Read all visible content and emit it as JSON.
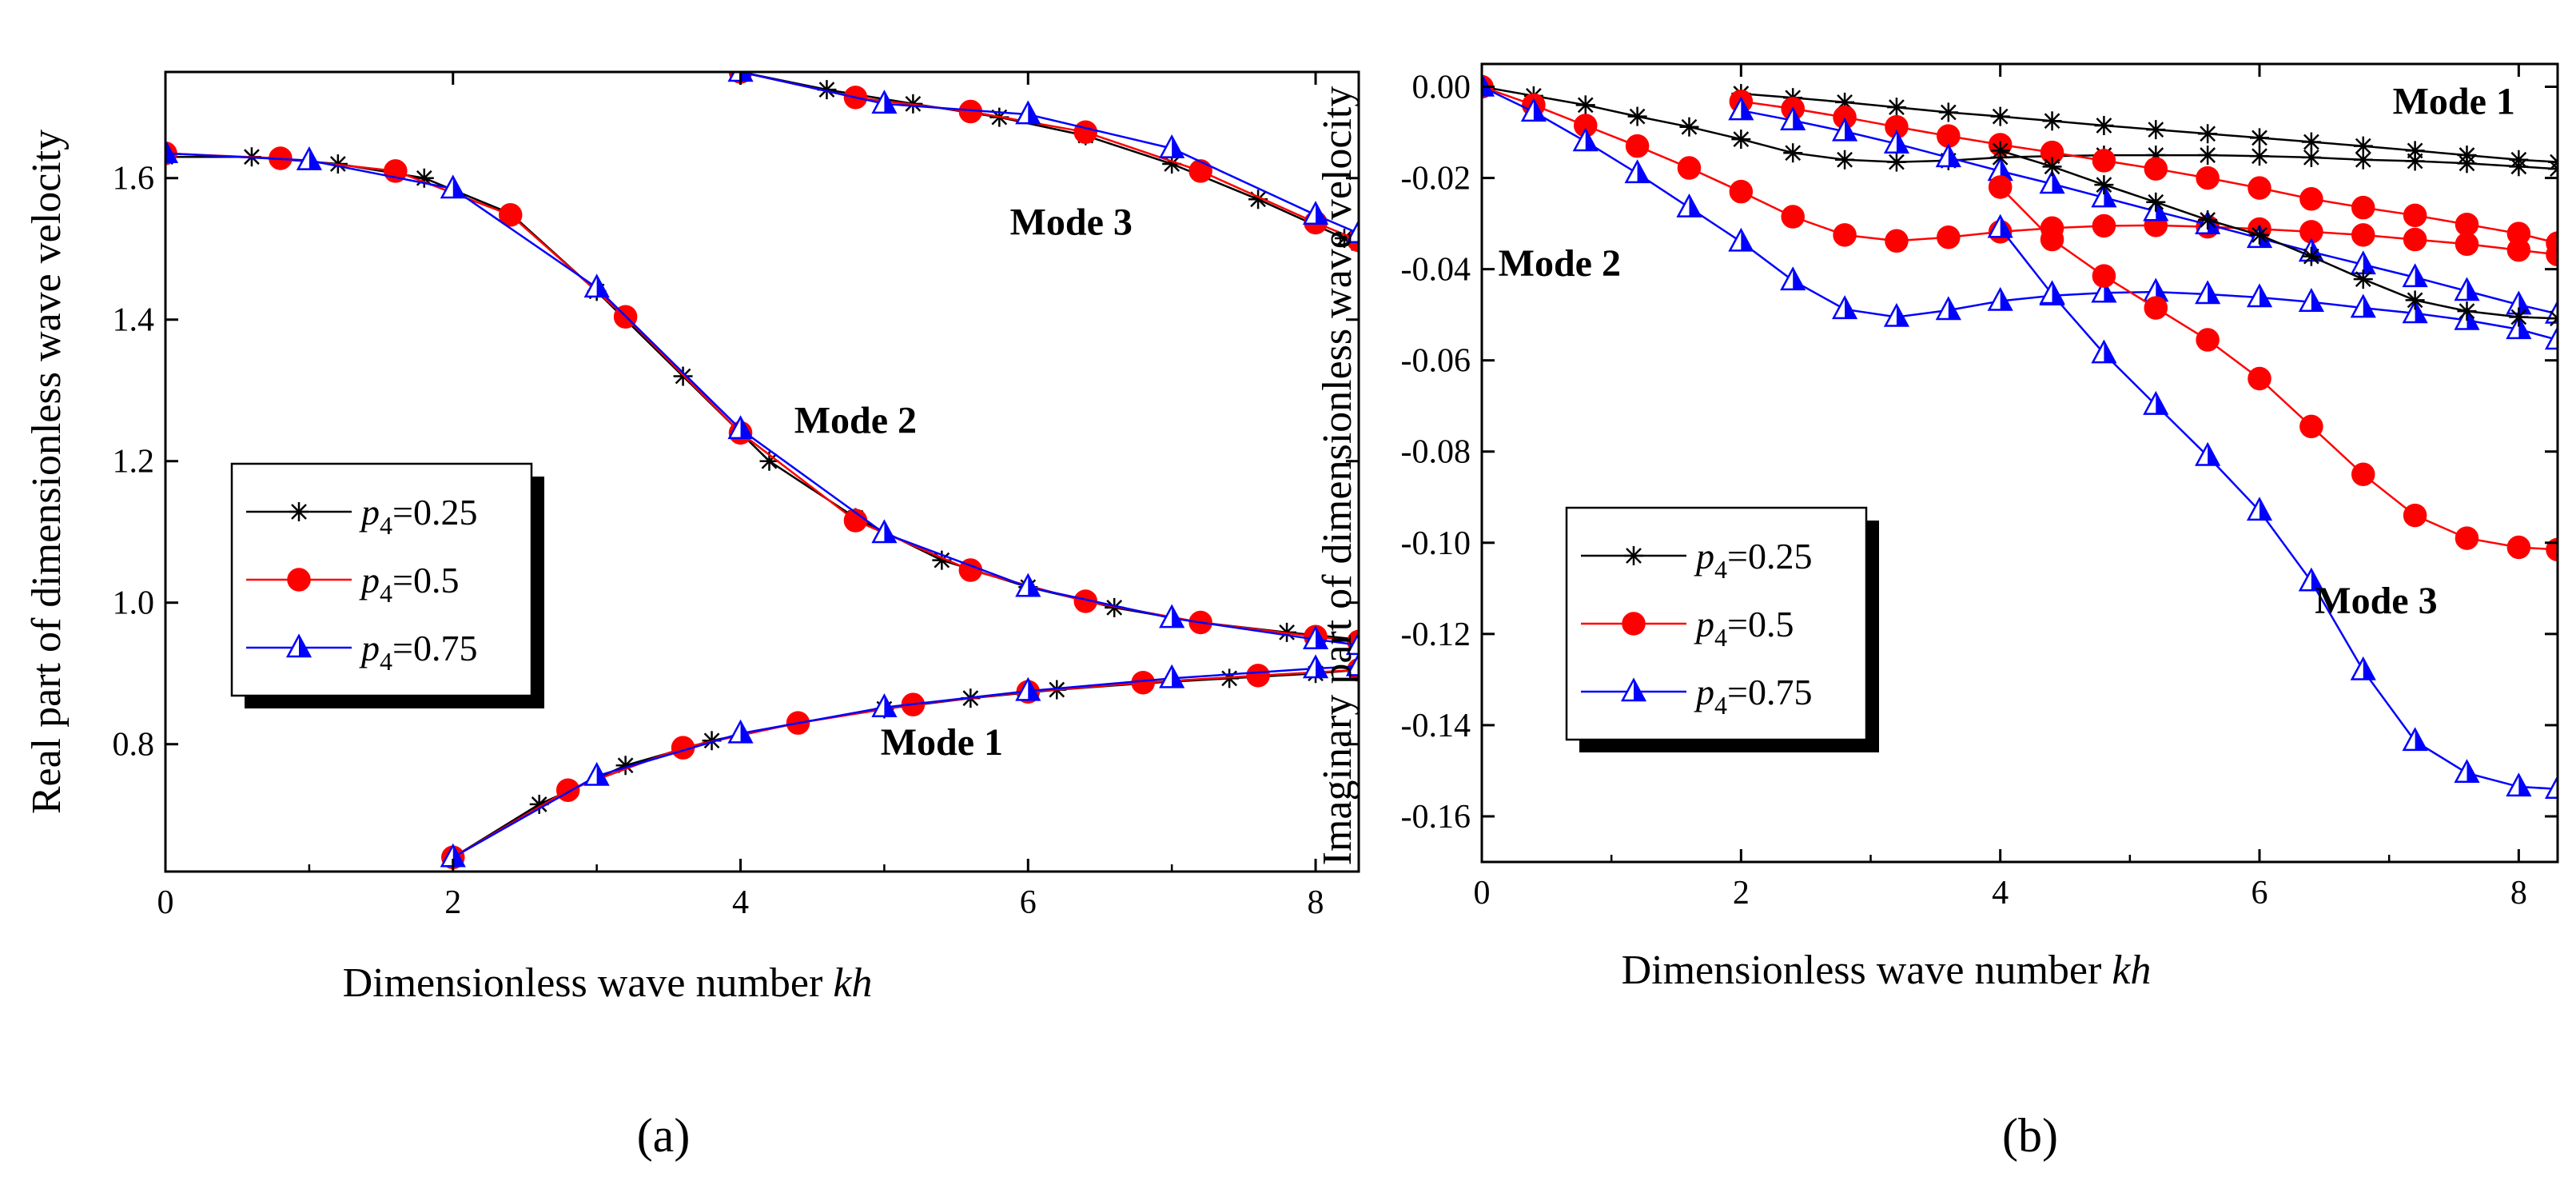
{
  "panel_labels": [
    "(a)",
    "(b)"
  ],
  "legend_entries": [
    {
      "symbol": "p",
      "sub": "4",
      "value": "=0.25",
      "color": "#000000",
      "marker": "star"
    },
    {
      "symbol": "p",
      "sub": "4",
      "value": "=0.5",
      "color": "#ff0000",
      "marker": "circle"
    },
    {
      "symbol": "p",
      "sub": "4",
      "value": "=0.75",
      "color": "#0000ff",
      "marker": "triangle"
    }
  ],
  "chart_data": [
    {
      "type": "line",
      "panel": "(a)",
      "xlabel": "Dimensionless wave number",
      "xlabel_italic": "kh",
      "ylabel": "Real part of dimensionless wave velocity",
      "xlim": [
        0,
        8.3
      ],
      "ylim": [
        0.62,
        1.75
      ],
      "xticks": [
        0,
        2,
        4,
        6,
        8
      ],
      "yticks": [
        0.8,
        1.0,
        1.2,
        1.4,
        1.6
      ],
      "ytick_labels": [
        "0.8",
        "1.0",
        "1.2",
        "1.4",
        "1.6"
      ],
      "annotations": [
        {
          "text": "Mode 3",
          "x": 6.3,
          "y": 1.52
        },
        {
          "text": "Mode 2",
          "x": 4.8,
          "y": 1.24
        },
        {
          "text": "Mode 1",
          "x": 5.4,
          "y": 0.785
        }
      ],
      "series": [
        {
          "name": "p4=0.25 Mode 1",
          "color": "#000000",
          "marker": "star",
          "x": [
            2.0,
            2.6,
            3.2,
            3.8,
            4.4,
            5.0,
            5.6,
            6.2,
            6.8,
            7.4,
            8.0,
            8.3
          ],
          "y": [
            0.64,
            0.715,
            0.77,
            0.805,
            0.83,
            0.85,
            0.865,
            0.877,
            0.886,
            0.893,
            0.9,
            0.905
          ]
        },
        {
          "name": "p4=0.5 Mode 1",
          "color": "#ff0000",
          "marker": "circle",
          "x": [
            2.0,
            2.8,
            3.6,
            4.4,
            5.2,
            6.0,
            6.8,
            7.6,
            8.3
          ],
          "y": [
            0.64,
            0.735,
            0.795,
            0.83,
            0.856,
            0.874,
            0.887,
            0.897,
            0.905
          ]
        },
        {
          "name": "p4=0.75 Mode 1",
          "color": "#0000ff",
          "marker": "triangle",
          "x": [
            2.0,
            3.0,
            4.0,
            5.0,
            6.0,
            7.0,
            8.0,
            8.3
          ],
          "y": [
            0.64,
            0.755,
            0.815,
            0.852,
            0.875,
            0.893,
            0.907,
            0.91
          ]
        },
        {
          "name": "p4=0.25 Mode 2",
          "color": "#000000",
          "marker": "star",
          "x": [
            0.0,
            0.6,
            1.2,
            1.8,
            2.4,
            3.0,
            3.6,
            4.2,
            4.8,
            5.4,
            6.0,
            6.6,
            7.2,
            7.8,
            8.3
          ],
          "y": [
            1.63,
            1.63,
            1.62,
            1.6,
            1.55,
            1.44,
            1.32,
            1.2,
            1.12,
            1.06,
            1.022,
            0.993,
            0.972,
            0.958,
            0.948
          ]
        },
        {
          "name": "p4=0.5 Mode 2",
          "color": "#ff0000",
          "marker": "circle",
          "x": [
            0.0,
            0.8,
            1.6,
            2.4,
            3.2,
            4.0,
            4.8,
            5.6,
            6.4,
            7.2,
            8.0,
            8.3
          ],
          "y": [
            1.635,
            1.628,
            1.61,
            1.548,
            1.404,
            1.24,
            1.116,
            1.046,
            1.002,
            0.972,
            0.952,
            0.945
          ]
        },
        {
          "name": "p4=0.75 Mode 2",
          "color": "#0000ff",
          "marker": "triangle",
          "x": [
            0.0,
            1.0,
            2.0,
            3.0,
            4.0,
            5.0,
            6.0,
            7.0,
            8.0,
            8.3
          ],
          "y": [
            1.635,
            1.625,
            1.585,
            1.445,
            1.245,
            1.098,
            1.022,
            0.978,
            0.948,
            0.94
          ]
        },
        {
          "name": "p4=0.25 Mode 3",
          "color": "#000000",
          "marker": "star",
          "x": [
            4.0,
            4.6,
            5.2,
            5.8,
            6.4,
            7.0,
            7.6,
            8.2,
            8.3
          ],
          "y": [
            1.75,
            1.725,
            1.705,
            1.686,
            1.66,
            1.62,
            1.57,
            1.515,
            1.508
          ]
        },
        {
          "name": "p4=0.5 Mode 3",
          "color": "#ff0000",
          "marker": "circle",
          "x": [
            4.0,
            4.8,
            5.6,
            6.4,
            7.2,
            8.0,
            8.3
          ],
          "y": [
            1.75,
            1.714,
            1.694,
            1.665,
            1.61,
            1.537,
            1.512
          ]
        },
        {
          "name": "p4=0.75 Mode 3",
          "color": "#0000ff",
          "marker": "triangle",
          "x": [
            4.0,
            5.0,
            6.0,
            7.0,
            8.0,
            8.3
          ],
          "y": [
            1.75,
            1.705,
            1.69,
            1.642,
            1.548,
            1.522
          ]
        }
      ]
    },
    {
      "type": "line",
      "panel": "(b)",
      "xlabel": "Dimensionless wave number",
      "xlabel_italic": "kh",
      "ylabel": "Imaginary part of dimensionless wave velocity",
      "xlim": [
        0,
        8.3
      ],
      "ylim": [
        -0.17,
        0.005
      ],
      "xticks": [
        0,
        2,
        4,
        6,
        8
      ],
      "yticks": [
        0.0,
        -0.02,
        -0.04,
        -0.06,
        -0.08,
        -0.1,
        -0.12,
        -0.14,
        -0.16
      ],
      "ytick_labels": [
        "0.00",
        "-0.02",
        "-0.04",
        "-0.06",
        "-0.08",
        "-0.10",
        "-0.12",
        "-0.14",
        "-0.16"
      ],
      "annotations": [
        {
          "text": "Mode 1",
          "x": 7.5,
          "y": -0.006
        },
        {
          "text": "Mode 2",
          "x": 0.6,
          "y": -0.0415
        },
        {
          "text": "Mode 3",
          "x": 6.9,
          "y": -0.1155
        }
      ],
      "series": [
        {
          "name": "p4=0.25 Mode 1",
          "color": "#000000",
          "marker": "star",
          "x": [
            0.0,
            0.4,
            0.8,
            1.2,
            1.6,
            2.0,
            2.4,
            2.8,
            3.2,
            3.6,
            4.0,
            4.4,
            4.8,
            5.2,
            5.6,
            6.0,
            6.4,
            6.8,
            7.2,
            7.6,
            8.0,
            8.3
          ],
          "y": [
            0.0,
            -0.002,
            -0.004,
            -0.0065,
            -0.0088,
            -0.0115,
            -0.0145,
            -0.016,
            -0.0165,
            -0.0162,
            -0.0155,
            -0.0152,
            -0.015,
            -0.015,
            -0.015,
            -0.0152,
            -0.0155,
            -0.016,
            -0.0163,
            -0.0168,
            -0.0175,
            -0.018
          ]
        },
        {
          "name": "p4=0.5 Mode 1",
          "color": "#ff0000",
          "marker": "circle",
          "x": [
            0.0,
            0.4,
            0.8,
            1.2,
            1.6,
            2.0,
            2.4,
            2.8,
            3.2,
            3.6,
            4.0,
            4.4,
            4.8,
            5.2,
            5.6,
            6.0,
            6.4,
            6.8,
            7.2,
            7.6,
            8.0,
            8.3
          ],
          "y": [
            0.0,
            -0.004,
            -0.0085,
            -0.013,
            -0.0178,
            -0.023,
            -0.0285,
            -0.0325,
            -0.0338,
            -0.033,
            -0.0318,
            -0.031,
            -0.0305,
            -0.0304,
            -0.0307,
            -0.0312,
            -0.0318,
            -0.0325,
            -0.0335,
            -0.0345,
            -0.0358,
            -0.0368
          ]
        },
        {
          "name": "p4=0.75 Mode 1",
          "color": "#0000ff",
          "marker": "triangle",
          "x": [
            0.0,
            0.4,
            0.8,
            1.2,
            1.6,
            2.0,
            2.4,
            2.8,
            3.2,
            3.6,
            4.0,
            4.4,
            4.8,
            5.2,
            5.6,
            6.0,
            6.4,
            6.8,
            7.2,
            7.6,
            8.0,
            8.3
          ],
          "y": [
            0.0,
            -0.0055,
            -0.012,
            -0.019,
            -0.0265,
            -0.034,
            -0.0425,
            -0.0488,
            -0.0505,
            -0.049,
            -0.047,
            -0.0458,
            -0.0452,
            -0.045,
            -0.0455,
            -0.0462,
            -0.0472,
            -0.0485,
            -0.0497,
            -0.0512,
            -0.0532,
            -0.0555
          ]
        },
        {
          "name": "p4=0.25 Mode 2",
          "color": "#000000",
          "marker": "star",
          "x": [
            2.0,
            2.4,
            2.8,
            3.2,
            3.6,
            4.0,
            4.4,
            4.8,
            5.2,
            5.6,
            6.0,
            6.4,
            6.8,
            7.2,
            7.6,
            8.0,
            8.3
          ],
          "y": [
            -0.0015,
            -0.0024,
            -0.0034,
            -0.0045,
            -0.0056,
            -0.0065,
            -0.0075,
            -0.0085,
            -0.0094,
            -0.0103,
            -0.0112,
            -0.0121,
            -0.013,
            -0.014,
            -0.015,
            -0.016,
            -0.0165
          ]
        },
        {
          "name": "p4=0.5 Mode 2",
          "color": "#ff0000",
          "marker": "circle",
          "x": [
            2.0,
            2.4,
            2.8,
            3.2,
            3.6,
            4.0,
            4.4,
            4.8,
            5.2,
            5.6,
            6.0,
            6.4,
            6.8,
            7.2,
            7.6,
            8.0,
            8.3
          ],
          "y": [
            -0.0032,
            -0.0048,
            -0.0067,
            -0.0088,
            -0.0108,
            -0.0127,
            -0.0144,
            -0.0162,
            -0.018,
            -0.02,
            -0.0222,
            -0.0246,
            -0.0265,
            -0.0282,
            -0.0302,
            -0.0322,
            -0.0343
          ]
        },
        {
          "name": "p4=0.75 Mode 2",
          "color": "#0000ff",
          "marker": "triangle",
          "x": [
            2.0,
            2.4,
            2.8,
            3.2,
            3.6,
            4.0,
            4.4,
            4.8,
            5.2,
            5.6,
            6.0,
            6.4,
            6.8,
            7.2,
            7.6,
            8.0,
            8.3
          ],
          "y": [
            -0.0052,
            -0.0074,
            -0.0098,
            -0.0125,
            -0.0155,
            -0.0185,
            -0.0213,
            -0.0243,
            -0.0273,
            -0.0302,
            -0.0332,
            -0.0362,
            -0.039,
            -0.0418,
            -0.0448,
            -0.0478,
            -0.0498
          ]
        },
        {
          "name": "p4=0.25 Mode 3",
          "color": "#000000",
          "marker": "star",
          "x": [
            4.0,
            4.4,
            4.8,
            5.2,
            5.6,
            6.0,
            6.4,
            6.8,
            7.2,
            7.6,
            8.0,
            8.3
          ],
          "y": [
            -0.014,
            -0.0175,
            -0.0215,
            -0.0253,
            -0.0292,
            -0.0325,
            -0.0372,
            -0.0422,
            -0.0468,
            -0.0492,
            -0.0505,
            -0.0508
          ]
        },
        {
          "name": "p4=0.5 Mode 3",
          "color": "#ff0000",
          "marker": "circle",
          "x": [
            4.0,
            4.4,
            4.8,
            5.2,
            5.6,
            6.0,
            6.4,
            6.8,
            7.2,
            7.6,
            8.0,
            8.3
          ],
          "y": [
            -0.022,
            -0.0335,
            -0.0415,
            -0.0485,
            -0.0555,
            -0.064,
            -0.0745,
            -0.085,
            -0.094,
            -0.099,
            -0.101,
            -0.1015
          ]
        },
        {
          "name": "p4=0.75 Mode 3",
          "color": "#0000ff",
          "marker": "triangle",
          "x": [
            4.0,
            4.4,
            4.8,
            5.2,
            5.6,
            6.0,
            6.4,
            6.8,
            7.2,
            7.6,
            8.0,
            8.3
          ],
          "y": [
            -0.031,
            -0.0455,
            -0.0585,
            -0.0698,
            -0.081,
            -0.093,
            -0.1085,
            -0.128,
            -0.1435,
            -0.1505,
            -0.1535,
            -0.154
          ]
        }
      ]
    }
  ]
}
